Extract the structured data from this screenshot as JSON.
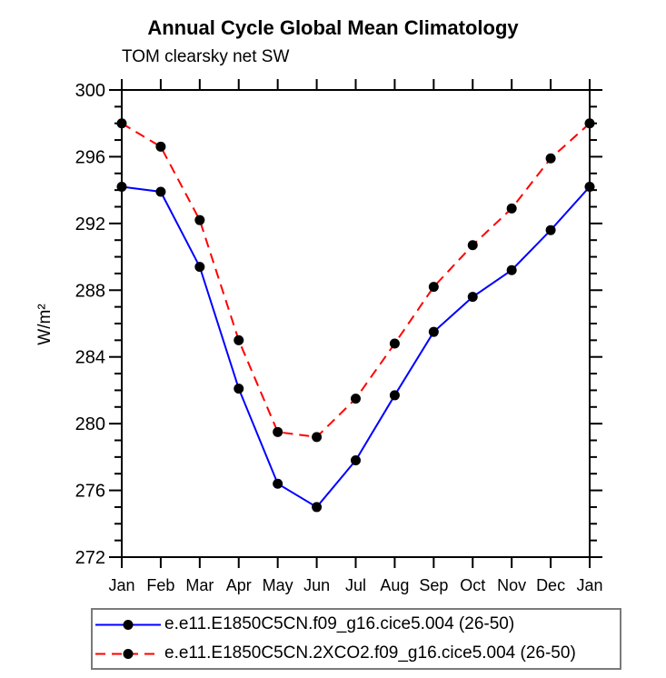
{
  "header": {
    "title": "Annual Cycle Global Mean Climatology",
    "subtitle": "TOM clearsky net SW"
  },
  "chart_data": {
    "type": "line",
    "title": "Annual Cycle Global Mean Climatology",
    "subtitle": "TOM clearsky net SW",
    "xlabel": "",
    "ylabel": "W/m²",
    "categories": [
      "Jan",
      "Feb",
      "Mar",
      "Apr",
      "May",
      "Jun",
      "Jul",
      "Aug",
      "Sep",
      "Oct",
      "Nov",
      "Dec",
      "Jan"
    ],
    "ylim": [
      272,
      300
    ],
    "ytick_major_step": 4,
    "ytick_minor_step": 1,
    "grid": false,
    "legend_position": "bottom",
    "series": [
      {
        "name": "e.e11.E1850C5CN.f09_g16.cice5.004 (26-50)",
        "color": "#0000FF",
        "style": "solid",
        "marker": "circle",
        "marker_color": "#000000",
        "values": [
          294.2,
          293.9,
          289.4,
          282.1,
          276.4,
          275.0,
          277.8,
          281.7,
          285.5,
          287.6,
          289.2,
          291.6,
          294.2
        ]
      },
      {
        "name": "e.e11.E1850C5CN.2XCO2.f09_g16.cice5.004 (26-50)",
        "color": "#FF0000",
        "style": "dashed",
        "marker": "circle",
        "marker_color": "#000000",
        "values": [
          298.0,
          296.6,
          292.2,
          285.0,
          279.5,
          279.2,
          281.5,
          284.8,
          288.2,
          290.7,
          292.9,
          295.9,
          298.0
        ]
      }
    ]
  }
}
